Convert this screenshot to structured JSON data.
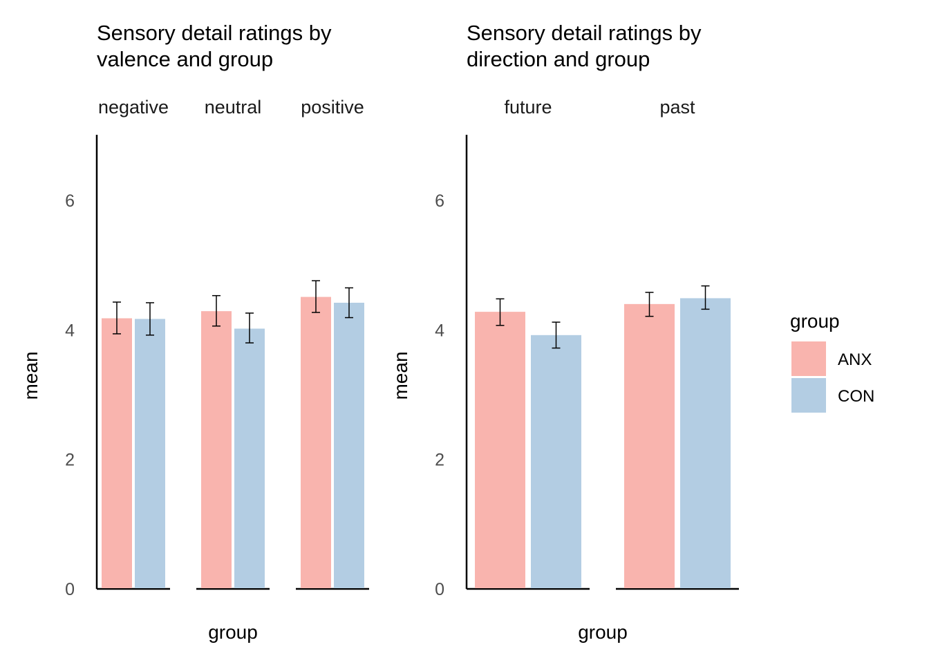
{
  "chart_data": [
    {
      "type": "bar",
      "title": "Sensory detail ratings by\nvalence and group",
      "facets": [
        "negative",
        "neutral",
        "positive"
      ],
      "groups": [
        "ANX",
        "CON"
      ],
      "xlabel": "group",
      "ylabel": "mean",
      "ylim": [
        0,
        7
      ],
      "yticks": [
        0,
        2,
        4,
        6
      ],
      "series": [
        {
          "facet": "negative",
          "group": "ANX",
          "value": 4.18,
          "error_low": 3.94,
          "error_high": 4.43
        },
        {
          "facet": "negative",
          "group": "CON",
          "value": 4.17,
          "error_low": 3.92,
          "error_high": 4.42
        },
        {
          "facet": "neutral",
          "group": "ANX",
          "value": 4.29,
          "error_low": 4.06,
          "error_high": 4.53
        },
        {
          "facet": "neutral",
          "group": "CON",
          "value": 4.02,
          "error_low": 3.8,
          "error_high": 4.26
        },
        {
          "facet": "positive",
          "group": "ANX",
          "value": 4.51,
          "error_low": 4.27,
          "error_high": 4.76
        },
        {
          "facet": "positive",
          "group": "CON",
          "value": 4.42,
          "error_low": 4.19,
          "error_high": 4.65
        }
      ]
    },
    {
      "type": "bar",
      "title": "Sensory detail ratings by\ndirection and group",
      "facets": [
        "future",
        "past"
      ],
      "groups": [
        "ANX",
        "CON"
      ],
      "xlabel": "group",
      "ylabel": "mean",
      "ylim": [
        0,
        7
      ],
      "yticks": [
        0,
        2,
        4,
        6
      ],
      "series": [
        {
          "facet": "future",
          "group": "ANX",
          "value": 4.28,
          "error_low": 4.07,
          "error_high": 4.48
        },
        {
          "facet": "future",
          "group": "CON",
          "value": 3.92,
          "error_low": 3.72,
          "error_high": 4.12
        },
        {
          "facet": "past",
          "group": "ANX",
          "value": 4.4,
          "error_low": 4.21,
          "error_high": 4.58
        },
        {
          "facet": "past",
          "group": "CON",
          "value": 4.49,
          "error_low": 4.32,
          "error_high": 4.68
        }
      ]
    }
  ],
  "legend": {
    "title": "group",
    "items": [
      {
        "label": "ANX",
        "color": "#f9b4ae"
      },
      {
        "label": "CON",
        "color": "#b3cde3"
      }
    ]
  },
  "colors": {
    "ANX": "#f9b4ae",
    "CON": "#b3cde3"
  }
}
